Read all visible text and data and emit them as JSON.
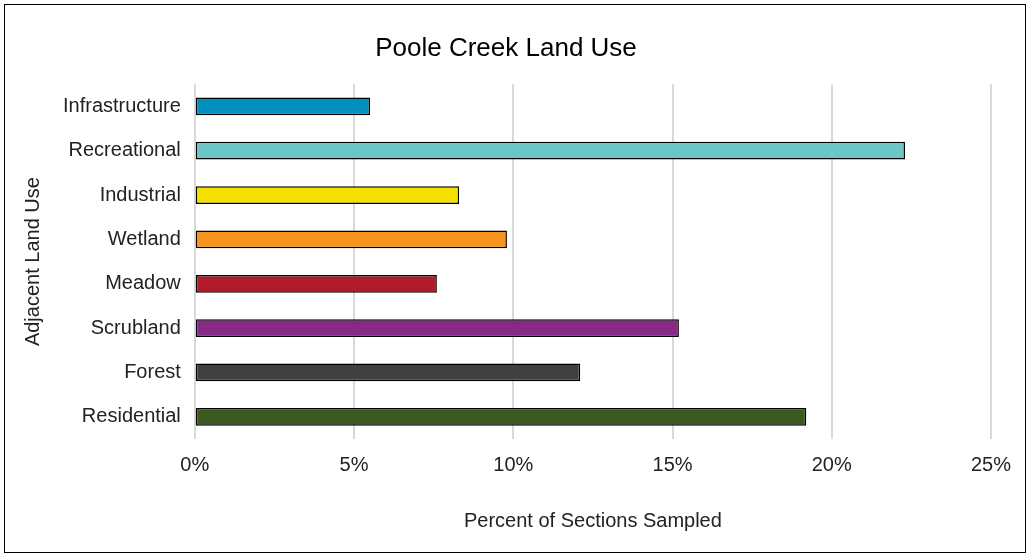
{
  "chart_data": {
    "type": "bar",
    "orientation": "horizontal",
    "title": "Poole Creek Land Use",
    "xlabel": "Percent of Sections Sampled",
    "ylabel": "Adjacent Land Use",
    "categories": [
      "Infrastructure",
      "Recreational",
      "Industrial",
      "Wetland",
      "Meadow",
      "Scrubland",
      "Forest",
      "Residential"
    ],
    "values": [
      5.5,
      22.3,
      8.3,
      9.8,
      7.6,
      15.2,
      12.1,
      19.2
    ],
    "colors": [
      "#0090c0",
      "#6cc6c6",
      "#f5e000",
      "#f7941d",
      "#b01c2a",
      "#862a86",
      "#404040",
      "#3b5a22"
    ],
    "xlim": [
      0,
      25
    ],
    "xticks": [
      {
        "value": 0,
        "label": "0%"
      },
      {
        "value": 5,
        "label": "5%"
      },
      {
        "value": 10,
        "label": "10%"
      },
      {
        "value": 15,
        "label": "15%"
      },
      {
        "value": 20,
        "label": "20%"
      },
      {
        "value": 25,
        "label": "25%"
      }
    ],
    "grid": "x",
    "legend": false
  }
}
